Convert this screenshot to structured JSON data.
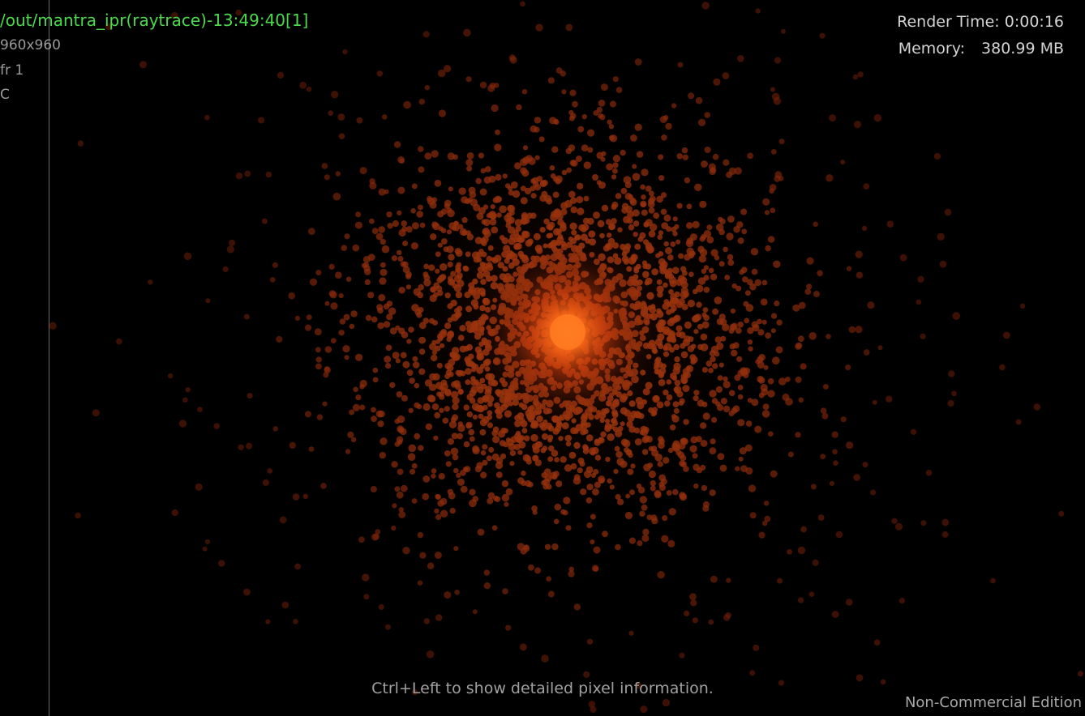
{
  "header": {
    "render_path": "/out/mantra_ipr(raytrace)-13:49:40[1]",
    "resolution": "960x960",
    "frame": "fr 1",
    "channel": "C"
  },
  "stats": {
    "render_time_label": "Render Time:",
    "render_time_value": "0:00:16",
    "memory_label": "Memory:",
    "memory_value": "380.99 MB"
  },
  "footer": {
    "hint": "Ctrl+Left to show detailed pixel information.",
    "edition": "Non-Commercial Edition"
  },
  "colors": {
    "background": "#000000",
    "path_text": "#4cd94c",
    "particle": "#b0300a",
    "core_glow": "#ff6a18"
  }
}
